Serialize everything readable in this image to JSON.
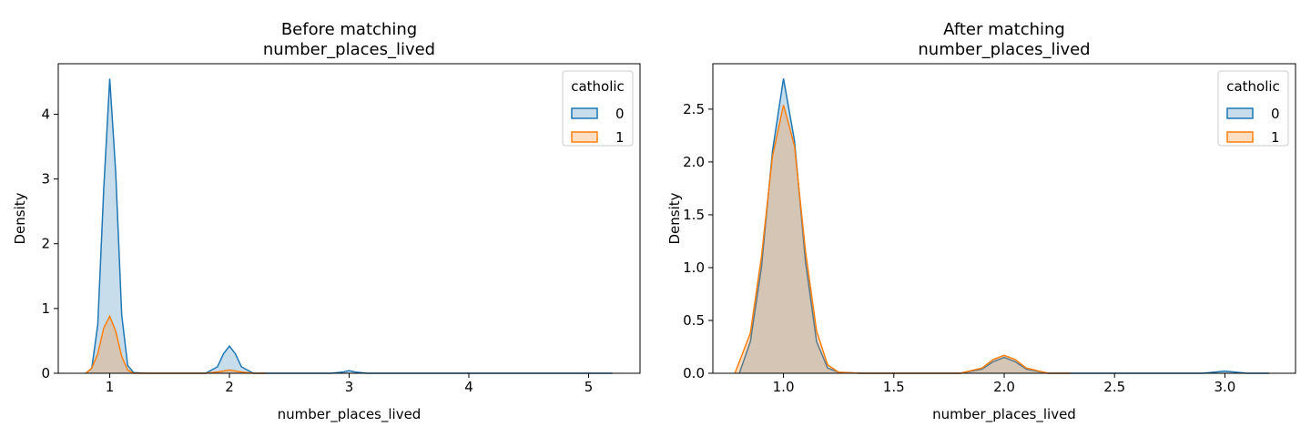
{
  "chart_data": [
    {
      "type": "area",
      "title_line1": "Before matching",
      "title_line2": "number_places_lived",
      "xlabel": "number_places_lived",
      "ylabel": "Density",
      "xlim": [
        0.57,
        5.43
      ],
      "ylim": [
        0,
        4.78
      ],
      "xticks": [
        1,
        2,
        3,
        4,
        5
      ],
      "xtick_labels": [
        "1",
        "2",
        "3",
        "4",
        "5"
      ],
      "yticks": [
        0,
        1,
        2,
        3,
        4
      ],
      "ytick_labels": [
        "0",
        "1",
        "2",
        "3",
        "4"
      ],
      "legend": {
        "title": "catholic",
        "position": "top-right",
        "entries": [
          "0",
          "1"
        ]
      },
      "grid": false,
      "series": [
        {
          "name": "0",
          "color": "#1f77b4",
          "x": [
            0.8,
            0.85,
            0.9,
            0.95,
            1.0,
            1.05,
            1.1,
            1.15,
            1.2,
            1.3,
            1.6,
            1.8,
            1.9,
            1.95,
            2.0,
            2.05,
            2.1,
            2.2,
            2.5,
            2.85,
            2.95,
            3.0,
            3.05,
            3.15,
            3.5,
            4.0,
            4.5,
            5.2
          ],
          "y": [
            0.0,
            0.08,
            0.75,
            2.85,
            4.55,
            3.1,
            0.9,
            0.12,
            0.01,
            0.0,
            0.0,
            0.0,
            0.1,
            0.3,
            0.42,
            0.3,
            0.1,
            0.0,
            0.0,
            0.0,
            0.02,
            0.04,
            0.02,
            0.0,
            0.0,
            0.0,
            0.0,
            0.0
          ]
        },
        {
          "name": "1",
          "color": "#ff7f0e",
          "x": [
            0.8,
            0.85,
            0.9,
            0.95,
            1.0,
            1.05,
            1.1,
            1.15,
            1.2,
            1.3,
            1.8,
            1.9,
            2.0,
            2.1,
            2.2,
            2.3
          ],
          "y": [
            0.0,
            0.08,
            0.3,
            0.7,
            0.88,
            0.65,
            0.26,
            0.05,
            0.0,
            0.0,
            0.0,
            0.02,
            0.05,
            0.02,
            0.0,
            0.0
          ]
        }
      ]
    },
    {
      "type": "area",
      "title_line1": "After matching",
      "title_line2": "number_places_lived",
      "xlabel": "number_places_lived",
      "ylabel": "Density",
      "xlim": [
        0.68,
        3.32
      ],
      "ylim": [
        0,
        2.93
      ],
      "xticks": [
        1.0,
        1.5,
        2.0,
        2.5,
        3.0
      ],
      "xtick_labels": [
        "1.0",
        "1.5",
        "2.0",
        "2.5",
        "3.0"
      ],
      "yticks": [
        0.0,
        0.5,
        1.0,
        1.5,
        2.0,
        2.5
      ],
      "ytick_labels": [
        "0.0",
        "0.5",
        "1.0",
        "1.5",
        "2.0",
        "2.5"
      ],
      "legend": {
        "title": "catholic",
        "position": "top-right",
        "entries": [
          "0",
          "1"
        ]
      },
      "grid": false,
      "series": [
        {
          "name": "0",
          "color": "#1f77b4",
          "x": [
            0.8,
            0.85,
            0.9,
            0.95,
            1.0,
            1.05,
            1.1,
            1.15,
            1.2,
            1.25,
            1.35,
            1.8,
            1.9,
            1.95,
            2.0,
            2.05,
            2.1,
            2.2,
            2.7,
            2.9,
            3.0,
            3.1,
            3.2
          ],
          "y": [
            0.0,
            0.3,
            1.0,
            2.1,
            2.79,
            2.2,
            1.05,
            0.3,
            0.05,
            0.01,
            0.0,
            0.0,
            0.04,
            0.11,
            0.15,
            0.11,
            0.04,
            0.0,
            0.0,
            0.0,
            0.02,
            0.0,
            0.0
          ]
        },
        {
          "name": "1",
          "color": "#ff7f0e",
          "x": [
            0.78,
            0.85,
            0.9,
            0.95,
            1.0,
            1.05,
            1.1,
            1.15,
            1.2,
            1.25,
            1.35,
            1.8,
            1.9,
            1.95,
            2.0,
            2.05,
            2.1,
            2.2,
            2.3
          ],
          "y": [
            0.0,
            0.38,
            1.1,
            2.05,
            2.54,
            2.15,
            1.15,
            0.4,
            0.08,
            0.01,
            0.0,
            0.0,
            0.05,
            0.13,
            0.17,
            0.13,
            0.05,
            0.0,
            0.0
          ]
        }
      ]
    }
  ]
}
